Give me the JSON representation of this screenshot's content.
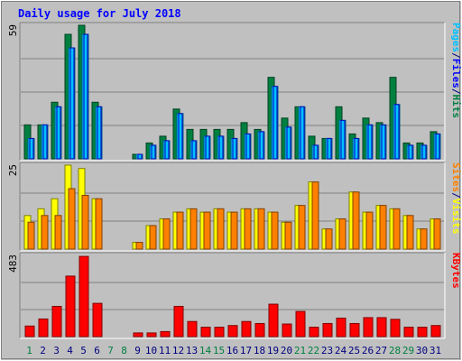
{
  "chart_data": {
    "type": "bar",
    "title": "Daily usage for July 2018",
    "categories": [
      "1",
      "2",
      "3",
      "4",
      "5",
      "6",
      "7",
      "8",
      "9",
      "10",
      "11",
      "12",
      "13",
      "14",
      "15",
      "16",
      "17",
      "18",
      "19",
      "20",
      "21",
      "22",
      "23",
      "24",
      "25",
      "26",
      "27",
      "28",
      "29",
      "30",
      "31"
    ],
    "weekend_days": [
      "1",
      "7",
      "8",
      "14",
      "15",
      "21",
      "22",
      "28",
      "29"
    ],
    "colors": {
      "background": "#c0c0c0",
      "title": "#0000ff",
      "hits": "#008040",
      "files": "#00c0ff",
      "pages": "#00c0ff",
      "sites": "#ff8000",
      "visits": "#ffff00",
      "kbytes": "#ff0000",
      "weekday_label": "#000080",
      "weekend_label": "#008040"
    },
    "panels": [
      {
        "id": "hits_files",
        "ymax": 59,
        "ymax_label": "59",
        "side_labels": [
          {
            "text": "Pages",
            "color": "#00c0ff"
          },
          {
            "text": "/",
            "color": "#000080"
          },
          {
            "text": "Files",
            "color": "#0000ff"
          },
          {
            "text": "/",
            "color": "#000080"
          },
          {
            "text": "Hits",
            "color": "#008040"
          }
        ],
        "series": [
          {
            "key": "hits",
            "values": [
              15,
              15,
              25,
              55,
              59,
              25,
              0,
              0,
              2,
              7,
              10,
              22,
              13,
              13,
              13,
              13,
              16,
              13,
              36,
              18,
              23,
              10,
              9,
              23,
              11,
              18,
              16,
              36,
              7,
              7,
              12
            ]
          },
          {
            "key": "files",
            "values": [
              9,
              15,
              23,
              49,
              55,
              23,
              0,
              0,
              2,
              6,
              8,
              20,
              8,
              10,
              10,
              9,
              11,
              12,
              32,
              14,
              23,
              6,
              9,
              17,
              9,
              15,
              15,
              24,
              6,
              6,
              11
            ]
          },
          {
            "key": "pages",
            "values": [
              9,
              15,
              23,
              49,
              55,
              23,
              0,
              0,
              2,
              6,
              8,
              20,
              8,
              10,
              10,
              9,
              11,
              12,
              32,
              14,
              23,
              6,
              9,
              17,
              9,
              15,
              15,
              24,
              6,
              6,
              11
            ]
          }
        ]
      },
      {
        "id": "visits_sites",
        "ymax": 25,
        "ymax_label": "25",
        "side_labels": [
          {
            "text": "Sites",
            "color": "#ff8000"
          },
          {
            "text": "/",
            "color": "#000080"
          },
          {
            "text": "Visits",
            "color": "#ffff00"
          }
        ],
        "series": [
          {
            "key": "visits",
            "values": [
              10,
              12,
              15,
              25,
              24,
              15,
              0,
              0,
              2,
              7,
              9,
              11,
              12,
              11,
              12,
              11,
              12,
              12,
              11,
              8,
              13,
              20,
              6,
              9,
              17,
              11,
              13,
              12,
              10,
              6,
              9
            ]
          },
          {
            "key": "sites",
            "values": [
              8,
              10,
              10,
              18,
              16,
              15,
              0,
              0,
              2,
              7,
              9,
              11,
              12,
              11,
              12,
              11,
              12,
              12,
              11,
              8,
              13,
              20,
              6,
              9,
              17,
              11,
              13,
              12,
              10,
              6,
              9
            ]
          }
        ]
      },
      {
        "id": "kbytes",
        "ymax": 483,
        "ymax_label": "483",
        "side_labels": [
          {
            "text": "KBytes",
            "color": "#ff0000"
          }
        ],
        "series": [
          {
            "key": "kbytes",
            "values": [
              63,
              105,
              180,
              360,
              477,
              198,
              0,
              0,
              22,
              22,
              30,
              180,
              90,
              56,
              56,
              66,
              90,
              78,
              193,
              75,
              150,
              56,
              78,
              110,
              78,
              113,
              113,
              103,
              56,
              56,
              66
            ]
          }
        ]
      }
    ]
  }
}
